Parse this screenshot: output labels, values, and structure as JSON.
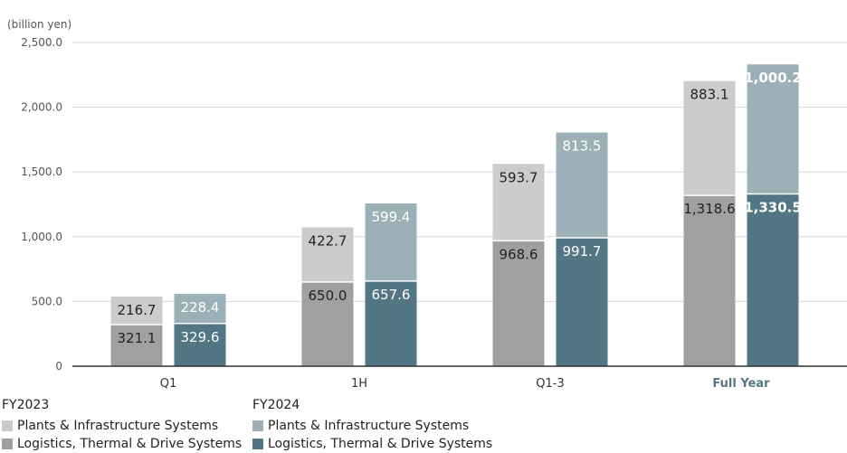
{
  "chart_data": {
    "type": "bar",
    "stacked": true,
    "unit_label": "(billion yen)",
    "ylim": [
      0,
      2500
    ],
    "yticks": [
      "0",
      "500.0",
      "1,000.0",
      "1,500.0",
      "2,000.0",
      "2,500.0"
    ],
    "ytick_values": [
      0,
      500,
      1000,
      1500,
      2000,
      2500
    ],
    "grid": true,
    "categories": [
      "Q1",
      "1H",
      "Q1-3",
      "Full Year"
    ],
    "groups": [
      {
        "name": "FY2023",
        "series": [
          {
            "name": "Logistics, Thermal & Drive Systems",
            "color": "#a0a0a0",
            "values": [
              321.1,
              650.0,
              968.6,
              1318.6
            ],
            "labels": [
              "321.1",
              "650.0",
              "968.6",
              "1,318.6"
            ]
          },
          {
            "name": "Plants & Infrastructure Systems",
            "color": "#cccccc",
            "values": [
              216.7,
              422.7,
              593.7,
              883.1
            ],
            "labels": [
              "216.7",
              "422.7",
              "593.7",
              "883.1"
            ]
          }
        ]
      },
      {
        "name": "FY2024",
        "series": [
          {
            "name": "Logistics, Thermal & Drive Systems",
            "color": "#537684",
            "values": [
              329.6,
              657.6,
              991.7,
              1330.5
            ],
            "labels": [
              "329.6",
              "657.6",
              "991.7",
              "1,330.5"
            ]
          },
          {
            "name": "Plants & Infrastructure Systems",
            "color": "#9bb0b7",
            "values": [
              228.4,
              599.4,
              813.5,
              1000.2
            ],
            "labels": [
              "228.4",
              "599.4",
              "813.5",
              "1,000.2"
            ]
          }
        ]
      }
    ],
    "highlight_category": "Full Year",
    "highlight_color": "#537684"
  },
  "legend": {
    "fy2023": {
      "title": "FY2023",
      "plants": "Plants & Infrastructure Systems",
      "logistics": "Logistics, Thermal & Drive Systems"
    },
    "fy2024": {
      "title": "FY2024",
      "plants": "Plants & Infrastructure Systems",
      "logistics": "Logistics, Thermal & Drive Systems"
    }
  }
}
